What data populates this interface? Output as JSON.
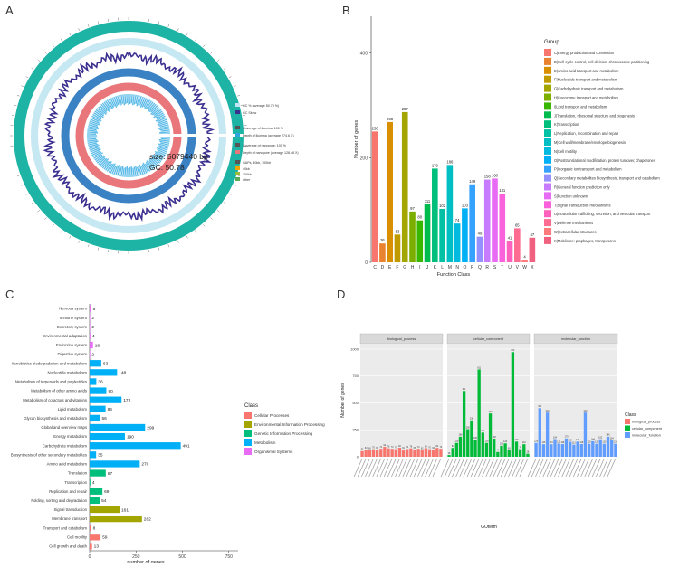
{
  "panels": {
    "a": {
      "letter": "A"
    },
    "b": {
      "letter": "B"
    },
    "c": {
      "letter": "C"
    },
    "d": {
      "letter": "D"
    }
  },
  "circos": {
    "size_label": "size: 5079440 bp",
    "gc_label": "GC: 50.78",
    "legend": [
      {
        "label": "GC % (average 50.78 %)",
        "color": "#bfe6f2"
      },
      {
        "label": "GC Skew",
        "color": "#3b2f8f"
      },
      {
        "label": "Coverage of illumina: 100 %",
        "color": "#555555"
      },
      {
        "label": "Depth of illumina (average 274.6 X)",
        "color": "#2fa4dc"
      },
      {
        "label": "Coverage of nanopore: 100 %",
        "color": "#555555"
      },
      {
        "label": "Depth of nanopore (average 128.48 X)",
        "color": "#e8767a"
      },
      {
        "label": "GAPs, 40kb, 100kb",
        "color": "#555555"
      },
      {
        "label": "40kb",
        "color": "#f0a500"
      },
      {
        "label": "100kb",
        "color": "#9bbb3a"
      },
      {
        "label": "other",
        "color": "#5aaa5a"
      }
    ],
    "colors": {
      "outer": "#1db3a5",
      "gc": "#bfe6f2",
      "skew": "#3b2f8f",
      "illumina": "#3a82c4",
      "nanopore": "#e8767a",
      "inner": "#5bbbe8"
    }
  },
  "chart_data": [
    {
      "id": "B",
      "type": "bar",
      "title": "",
      "xlabel": "Function Class",
      "ylabel": "Number of genes",
      "ylim": [
        0,
        470
      ],
      "yticks": [
        0,
        200,
        400
      ],
      "categories": [
        "C",
        "D",
        "E",
        "F",
        "G",
        "H",
        "I",
        "J",
        "K",
        "L",
        "M",
        "N",
        "O",
        "P",
        "Q",
        "R",
        "S",
        "T",
        "U",
        "V",
        "W",
        "X"
      ],
      "values": [
        250,
        36,
        268,
        53,
        287,
        97,
        80,
        111,
        179,
        102,
        186,
        74,
        103,
        149,
        49,
        158,
        160,
        131,
        41,
        65,
        4,
        47
      ],
      "colors": [
        "#f8766d",
        "#ea8331",
        "#d89000",
        "#c09b00",
        "#a3a500",
        "#7cae00",
        "#39b600",
        "#00bb4e",
        "#00bf7d",
        "#00c1a3",
        "#00bfc4",
        "#00bae0",
        "#00b0f6",
        "#35a2ff",
        "#9590ff",
        "#c77cff",
        "#e76bf3",
        "#fa62db",
        "#ff62bc",
        "#ff6c91",
        "#ff7a7a",
        "#f0607f"
      ],
      "legend_title": "Group",
      "legend": [
        "C|Energy production and conversion",
        "D|Cell cycle control, cell division, chromosome partitioning",
        "E|Amino acid transport and metabolism",
        "F|Nucleotide transport and metabolism",
        "G|Carbohydrate transport and metabolism",
        "H|Coenzyme transport and metabolism",
        "I|Lipid transport and metabolism",
        "J|Translation, ribosomal structure and biogenesis",
        "K|Transcription",
        "L|Replication, recombination and repair",
        "M|Cell wall/membrane/envelope biogenesis",
        "N|Cell motility",
        "O|Posttranslational modification, protein turnover, chaperones",
        "P|Inorganic ion transport and metabolism",
        "Q|Secondary metabolites biosynthesis, transport and catabolism",
        "R|General function prediction only",
        "S|Function unknown",
        "T|Signal transduction mechanisms",
        "U|Intracellular trafficking, secretion, and vesicular transport",
        "V|Defense mechanisms",
        "W|Extracellular structures",
        "X|Mobilome: prophages, transposons"
      ]
    },
    {
      "id": "C",
      "type": "bar",
      "orientation": "horizontal",
      "xlabel": "number of genes",
      "xlim": [
        0,
        800
      ],
      "xticks": [
        0,
        250,
        500,
        750
      ],
      "legend_title": "Class",
      "class_names": [
        "Cellular Processes",
        "Environmental Information Processing",
        "Genetic Information Processing",
        "Metabolism",
        "Organismal Systems"
      ],
      "class_colors": [
        "#f8766d",
        "#a3a500",
        "#00bf7d",
        "#00b0f6",
        "#e76bf3"
      ],
      "categories": [
        "Nervous system",
        "Immune system",
        "Excretory system",
        "Environmental adaptation",
        "Endocrine system",
        "Digestive system",
        "Xenobiotics biodegradation and metabolism",
        "Nucleotide metabolism",
        "Metabolism of terpenoids and polyketides",
        "Metabolism of other amino acids",
        "Metabolism of cofactors and vitamins",
        "Lipid metabolism",
        "Glycan biosynthesis and metabolism",
        "Global and overview maps",
        "Energy metabolism",
        "Carbohydrate metabolism",
        "Biosynthesis of other secondary metabolites",
        "Amino acid metabolism",
        "Translation",
        "Transcription",
        "Replication and repair",
        "Folding, sorting and degradation",
        "Signal transduction",
        "Membrane transport",
        "Transport and catabolism",
        "Cell motility",
        "Cell growth and death"
      ],
      "values": [
        8,
        2,
        2,
        4,
        18,
        2,
        63,
        148,
        36,
        90,
        172,
        86,
        56,
        299,
        190,
        491,
        35,
        270,
        87,
        4,
        69,
        54,
        161,
        282,
        8,
        59,
        13
      ],
      "classes": [
        4,
        4,
        4,
        4,
        4,
        4,
        3,
        3,
        3,
        3,
        3,
        3,
        3,
        3,
        3,
        3,
        3,
        3,
        2,
        2,
        2,
        2,
        1,
        1,
        0,
        0,
        0
      ]
    },
    {
      "id": "D",
      "type": "bar",
      "facets": [
        "biological_process",
        "cellular_component",
        "molecular_function"
      ],
      "facet_colors": [
        "#f8766d",
        "#00ba38",
        "#619cff"
      ],
      "ylabel": "Number of genes",
      "xlabel": "GOterm",
      "ylim": [
        0,
        1050
      ],
      "yticks": [
        0,
        250,
        500,
        750,
        1000
      ],
      "legend_title": "Class",
      "legend": [
        "biological_process",
        "cellular_component",
        "molecular_function"
      ],
      "series": [
        {
          "name": "biological_process",
          "values": [
            52,
            64,
            60,
            70,
            66,
            74,
            92,
            78,
            74,
            70,
            84,
            64,
            72,
            78,
            66,
            74,
            62,
            80,
            70,
            64,
            82,
            74
          ]
        },
        {
          "name": "cellular_component",
          "values": [
            16,
            82,
            128,
            186,
            611,
            256,
            338,
            160,
            811,
            224,
            128,
            402,
            168,
            44,
            102,
            124,
            60,
            972,
            140,
            70,
            116,
            28
          ]
        },
        {
          "name": "molecular_function",
          "values": [
            128,
            451,
            116,
            410,
            116,
            164,
            122,
            118,
            170,
            138,
            112,
            140,
            118,
            410,
            120,
            144,
            120,
            162,
            120,
            186,
            154,
            120
          ]
        }
      ]
    }
  ]
}
